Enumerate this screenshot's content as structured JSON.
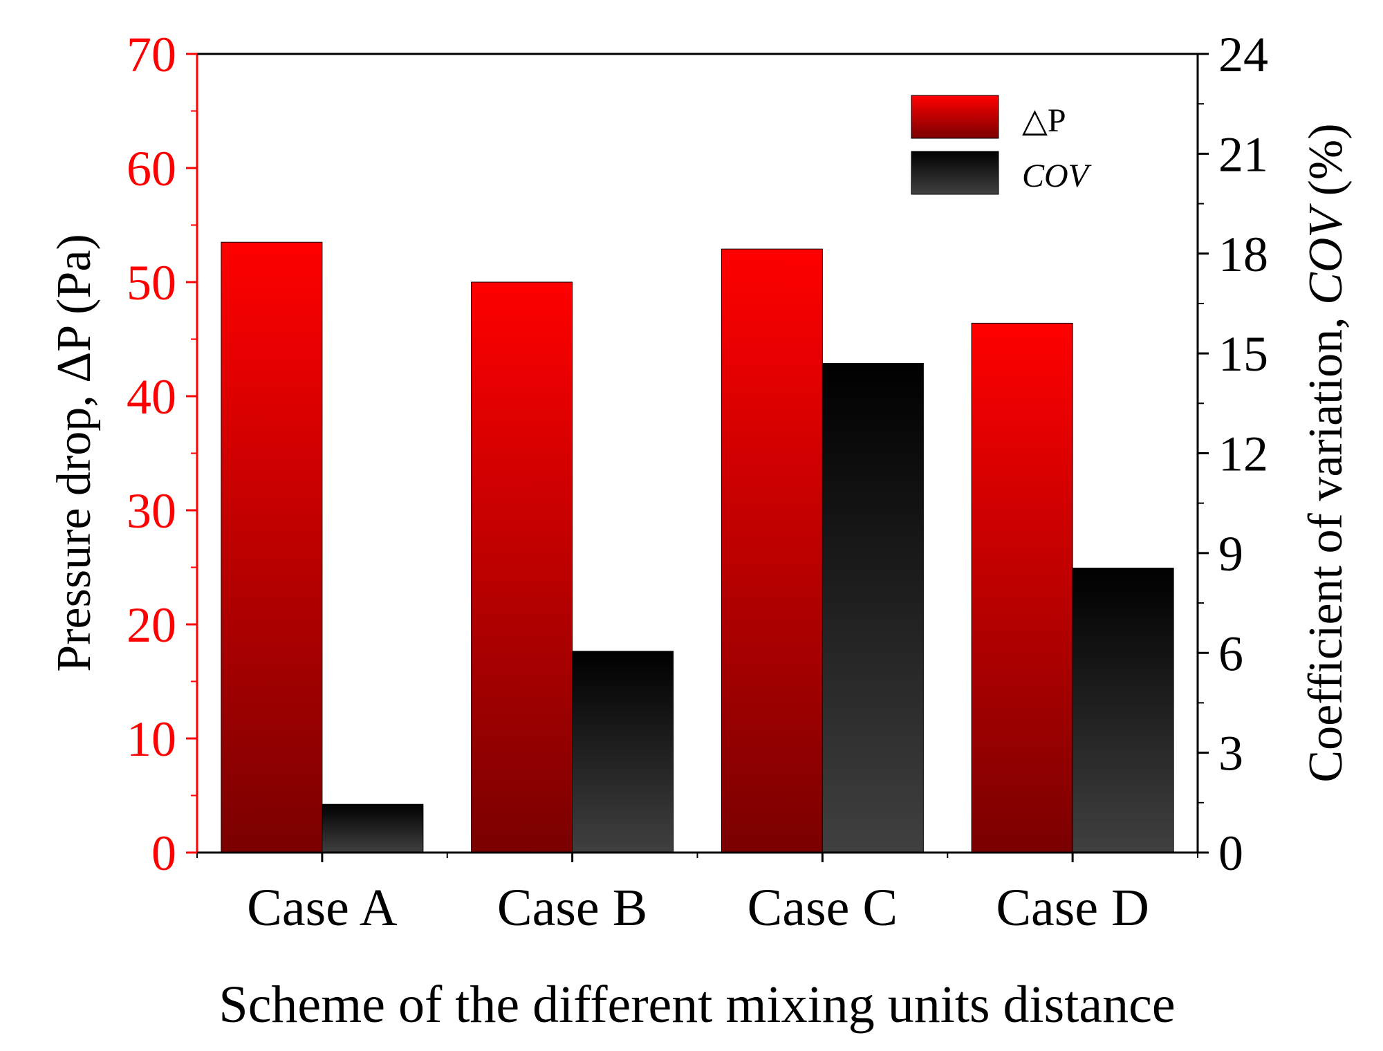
{
  "chart_data": {
    "type": "bar",
    "categories": [
      "Case A",
      "Case B",
      "Case C",
      "Case D"
    ],
    "series": [
      {
        "name": "△P",
        "axis": "left",
        "values": [
          53.5,
          50.0,
          52.9,
          46.4
        ],
        "color_top": "#ff0000",
        "color_bottom": "#7a0000"
      },
      {
        "name": "COV",
        "axis": "right",
        "values": [
          1.45,
          6.05,
          14.7,
          8.55
        ],
        "color_top": "#000000",
        "color_bottom": "#404040"
      }
    ],
    "legend_labels": [
      "△P",
      "COV"
    ],
    "legend_position": "top-right",
    "xlabel": "Scheme of the different mixing units distance",
    "ylabel_left": "Pressure drop, ΔP (Pa)",
    "ylabel_right_prefix": "Coefficient of variation, ",
    "ylabel_right_italic": "COV",
    "ylabel_right_suffix": " (%)",
    "ylim_left": [
      0,
      70
    ],
    "yticks_left": [
      "0",
      "10",
      "20",
      "30",
      "40",
      "50",
      "60",
      "70"
    ],
    "ylim_right": [
      0,
      24
    ],
    "yticks_right": [
      "0",
      "3",
      "6",
      "9",
      "12",
      "15",
      "18",
      "21",
      "24"
    ],
    "left_axis_color": "#ff0000",
    "right_axis_color": "#000000",
    "grid": false
  }
}
